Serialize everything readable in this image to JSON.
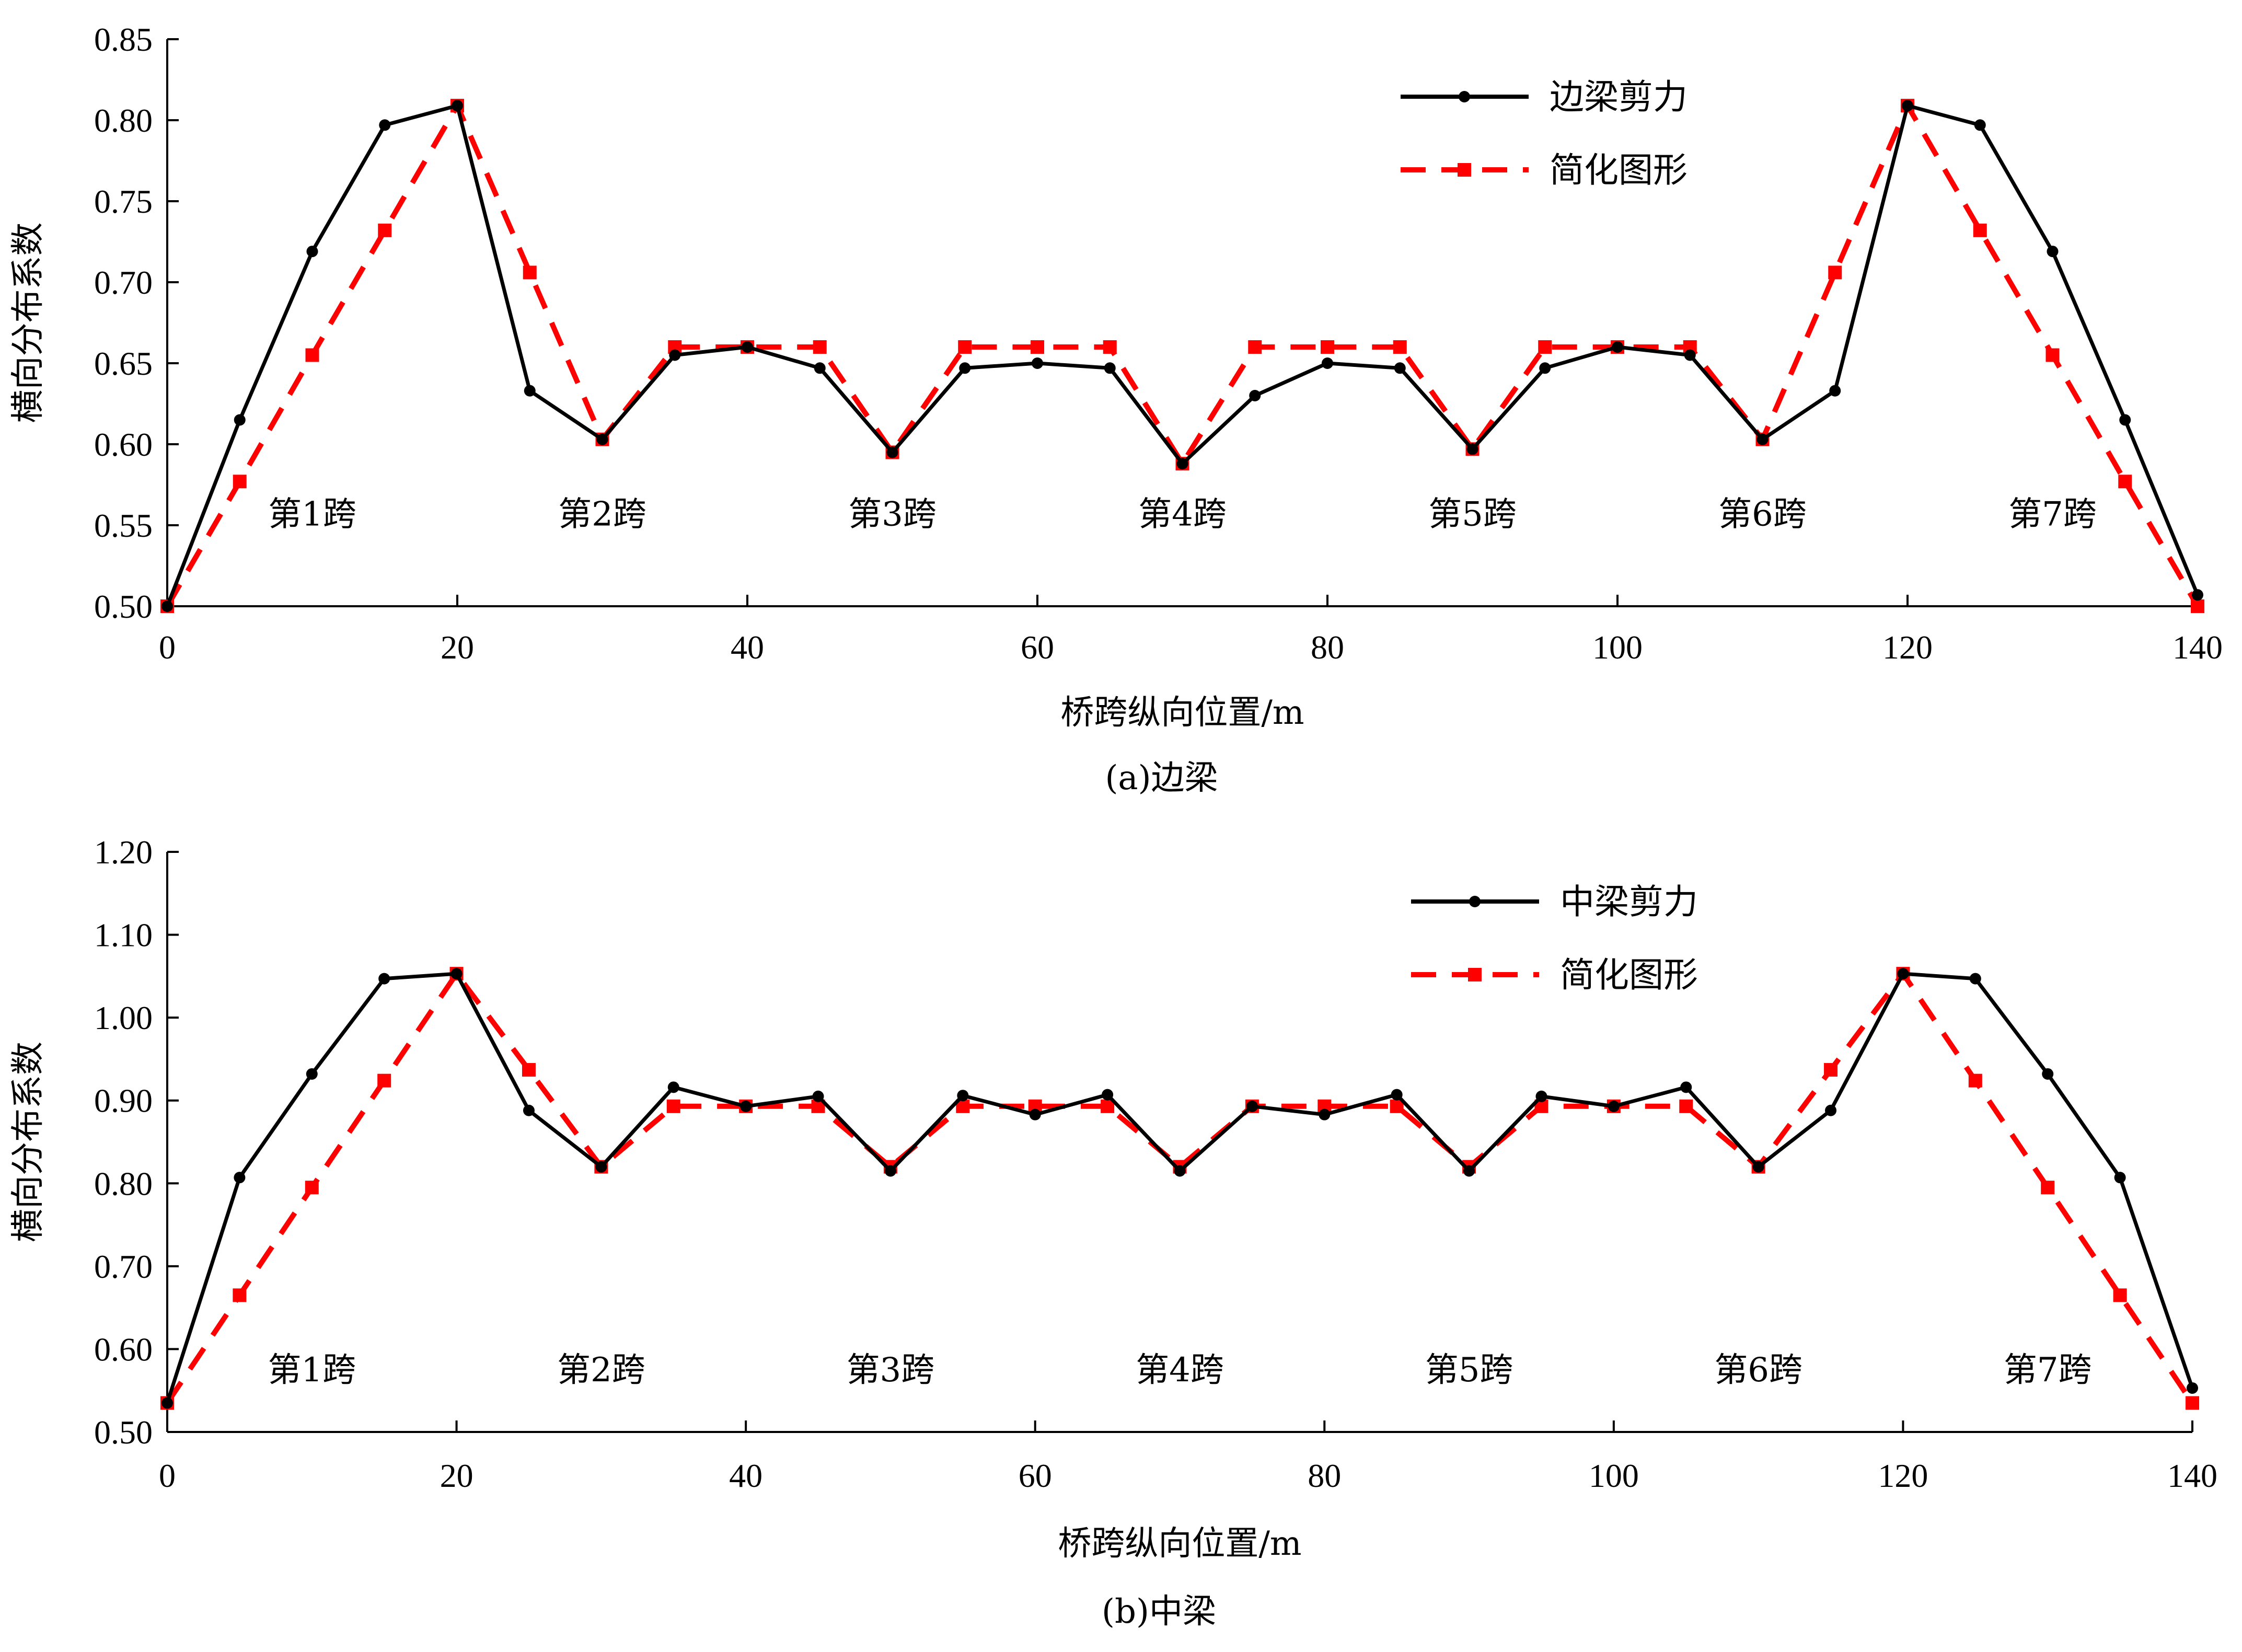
{
  "colors": {
    "actual": "#000000",
    "simplified": "#ff0000",
    "axis": "#000000"
  },
  "chart_data": [
    {
      "type": "line",
      "caption": "(a)边梁",
      "xlabel": "桥跨纵向位置/m",
      "ylabel": "横向分布系数",
      "xlim": [
        0,
        140
      ],
      "ylim": [
        0.5,
        0.85
      ],
      "xticks": [
        "0",
        "20",
        "40",
        "60",
        "80",
        "100",
        "120",
        "140"
      ],
      "yticks": [
        "0.50",
        "0.55",
        "0.60",
        "0.65",
        "0.70",
        "0.75",
        "0.80",
        "0.85"
      ],
      "legend_position": "top-right",
      "series": [
        {
          "name": "边梁剪力",
          "style": "solid",
          "marker": "circle",
          "x": [
            0,
            5,
            10,
            15,
            20,
            25,
            30,
            35,
            40,
            45,
            50,
            55,
            60,
            65,
            70,
            75,
            80,
            85,
            90,
            95,
            100,
            105,
            110,
            115,
            120,
            125,
            130,
            135,
            140
          ],
          "y": [
            0.5,
            0.615,
            0.719,
            0.797,
            0.809,
            0.633,
            0.603,
            0.655,
            0.66,
            0.647,
            0.595,
            0.647,
            0.65,
            0.647,
            0.588,
            0.63,
            0.65,
            0.647,
            0.597,
            0.647,
            0.66,
            0.655,
            0.603,
            0.633,
            0.809,
            0.797,
            0.719,
            0.615,
            0.507
          ]
        },
        {
          "name": "简化图形",
          "style": "dashed",
          "marker": "square",
          "x": [
            0,
            5,
            10,
            15,
            20,
            25,
            30,
            35,
            40,
            45,
            50,
            55,
            60,
            65,
            70,
            75,
            80,
            85,
            90,
            95,
            100,
            105,
            110,
            115,
            120,
            125,
            130,
            135,
            140
          ],
          "y": [
            0.5,
            0.577,
            0.655,
            0.732,
            0.809,
            0.706,
            0.603,
            0.66,
            0.66,
            0.66,
            0.595,
            0.66,
            0.66,
            0.66,
            0.588,
            0.66,
            0.66,
            0.66,
            0.597,
            0.66,
            0.66,
            0.66,
            0.603,
            0.706,
            0.809,
            0.732,
            0.655,
            0.577,
            0.5
          ]
        }
      ],
      "annotations": [
        {
          "text": "第1跨",
          "x": 10,
          "y": 0.557
        },
        {
          "text": "第2跨",
          "x": 30,
          "y": 0.557
        },
        {
          "text": "第3跨",
          "x": 50,
          "y": 0.557
        },
        {
          "text": "第4跨",
          "x": 70,
          "y": 0.557
        },
        {
          "text": "第5跨",
          "x": 90,
          "y": 0.557
        },
        {
          "text": "第6跨",
          "x": 110,
          "y": 0.557
        },
        {
          "text": "第7跨",
          "x": 130,
          "y": 0.557
        }
      ]
    },
    {
      "type": "line",
      "caption": "(b)中梁",
      "xlabel": "桥跨纵向位置/m",
      "ylabel": "横向分布系数",
      "xlim": [
        0,
        140
      ],
      "ylim": [
        0.5,
        1.2
      ],
      "xticks": [
        "0",
        "20",
        "40",
        "60",
        "80",
        "100",
        "120",
        "140"
      ],
      "yticks": [
        "0.50",
        "0.60",
        "0.70",
        "0.80",
        "0.90",
        "1.00",
        "1.10",
        "1.20"
      ],
      "legend_position": "top-right",
      "series": [
        {
          "name": "中梁剪力",
          "style": "solid",
          "marker": "circle",
          "x": [
            0,
            5,
            10,
            15,
            20,
            25,
            30,
            35,
            40,
            45,
            50,
            55,
            60,
            65,
            70,
            75,
            80,
            85,
            90,
            95,
            100,
            105,
            110,
            115,
            120,
            125,
            130,
            135,
            140
          ],
          "y": [
            0.535,
            0.807,
            0.932,
            1.047,
            1.053,
            0.888,
            0.82,
            0.916,
            0.893,
            0.905,
            0.815,
            0.906,
            0.883,
            0.907,
            0.815,
            0.893,
            0.883,
            0.907,
            0.815,
            0.905,
            0.893,
            0.916,
            0.82,
            0.888,
            1.053,
            1.047,
            0.932,
            0.807,
            0.553
          ]
        },
        {
          "name": "简化图形",
          "style": "dashed",
          "marker": "square",
          "x": [
            0,
            5,
            10,
            15,
            20,
            25,
            30,
            35,
            40,
            45,
            50,
            55,
            60,
            65,
            70,
            75,
            80,
            85,
            90,
            95,
            100,
            105,
            110,
            115,
            120,
            125,
            130,
            135,
            140
          ],
          "y": [
            0.535,
            0.665,
            0.795,
            0.924,
            1.053,
            0.937,
            0.82,
            0.893,
            0.893,
            0.893,
            0.82,
            0.893,
            0.893,
            0.893,
            0.82,
            0.893,
            0.893,
            0.893,
            0.82,
            0.893,
            0.893,
            0.893,
            0.82,
            0.937,
            1.053,
            0.924,
            0.795,
            0.665,
            0.535
          ]
        }
      ],
      "annotations": [
        {
          "text": "第1跨",
          "x": 10,
          "y": 0.575
        },
        {
          "text": "第2跨",
          "x": 30,
          "y": 0.575
        },
        {
          "text": "第3跨",
          "x": 50,
          "y": 0.575
        },
        {
          "text": "第4跨",
          "x": 70,
          "y": 0.575
        },
        {
          "text": "第5跨",
          "x": 90,
          "y": 0.575
        },
        {
          "text": "第6跨",
          "x": 110,
          "y": 0.575
        },
        {
          "text": "第7跨",
          "x": 130,
          "y": 0.575
        }
      ]
    }
  ]
}
